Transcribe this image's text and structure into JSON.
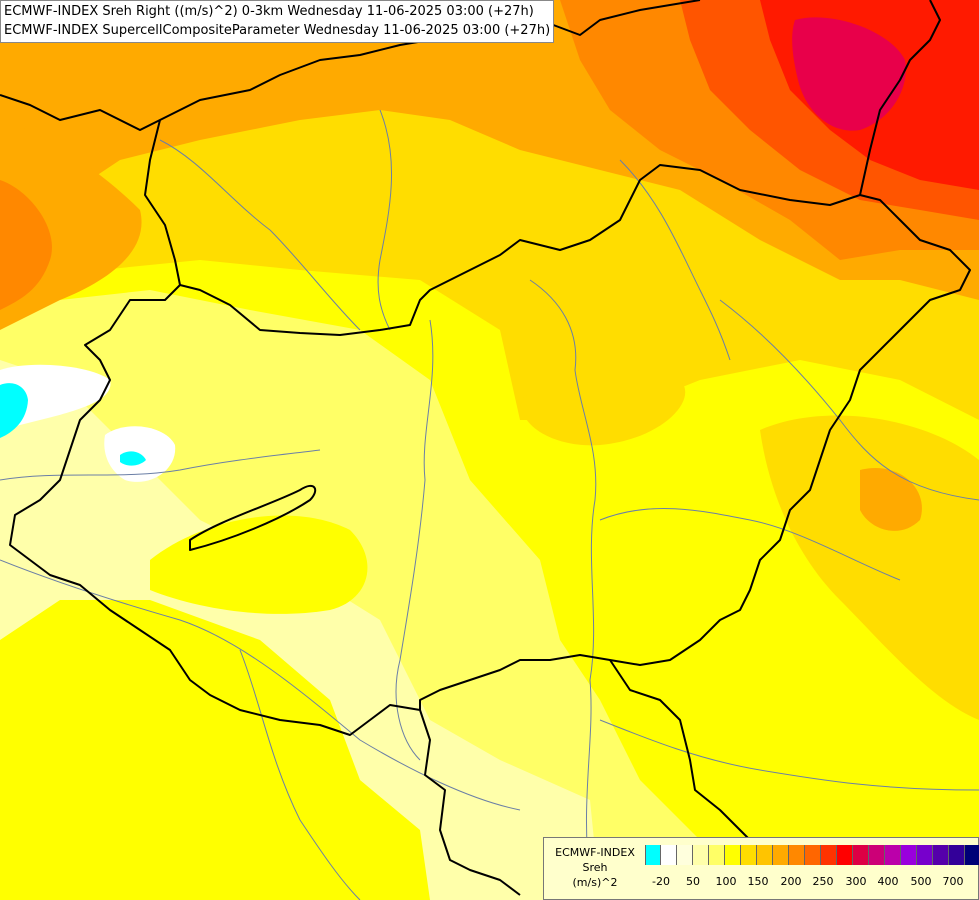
{
  "titles": {
    "line1": "ECMWF-INDEX Sreh Right ((m/s)^2) 0-3km Wednesday 11-06-2025 03:00 (+27h)",
    "line2": "ECMWF-INDEX SupercellCompositeParameter Wednesday 11-06-2025 03:00 (+27h)"
  },
  "legend": {
    "model": "ECMWF-INDEX",
    "param": "Sreh",
    "unit": "(m/s)^2",
    "ticks": [
      "-20",
      "50",
      "100",
      "150",
      "200",
      "250",
      "300",
      "400",
      "500",
      "700"
    ],
    "colors": [
      "#00ffff",
      "#ffffff",
      "#ffffdd",
      "#ffffaa",
      "#ffff66",
      "#ffff00",
      "#ffdd00",
      "#ffc400",
      "#ffaa00",
      "#ff8800",
      "#ff6600",
      "#ff3300",
      "#ff0000",
      "#dd0044",
      "#cc0077",
      "#bb00aa",
      "#9900dd",
      "#7700cc",
      "#5500aa",
      "#330099",
      "#000077"
    ]
  },
  "map_colors": {
    "pale": "#ffffaa",
    "light": "#ffff66",
    "yellow": "#ffff00",
    "gold": "#ffdd00",
    "orange": "#ffaa00",
    "dark_orange": "#ff8800",
    "red_orange": "#ff5500",
    "red": "#ff1a00",
    "crimson": "#e8004a",
    "cyan": "#00ffff",
    "border": "#000000",
    "river": "#6b7fa6"
  }
}
